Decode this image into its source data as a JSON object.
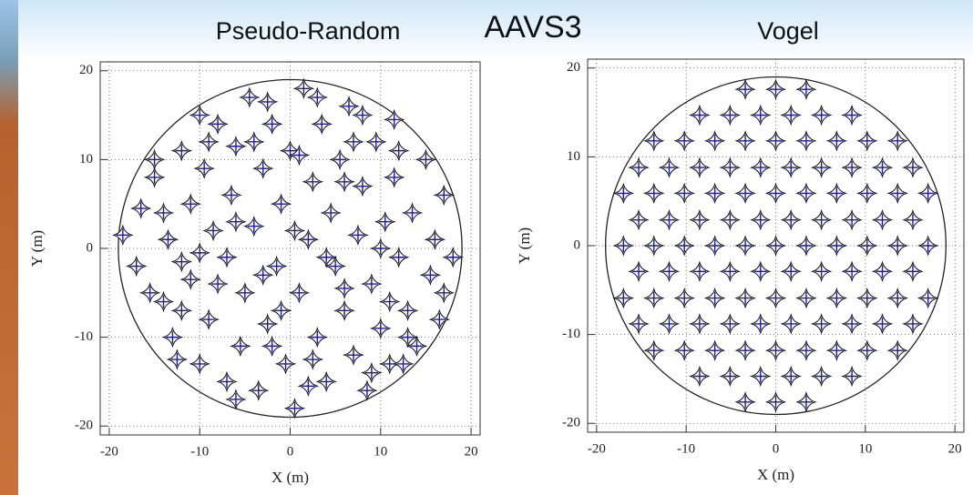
{
  "slide_title": "AAVS3",
  "chart_data": [
    {
      "type": "scatter",
      "title": "Pseudo-Random",
      "xlabel": "X (m)",
      "ylabel": "Y (m)",
      "xlim": [
        -21,
        21
      ],
      "ylim": [
        -21,
        21
      ],
      "xticks": [
        -20,
        -10,
        0,
        10,
        20
      ],
      "yticks": [
        -20,
        -10,
        0,
        10,
        20
      ],
      "grid": true,
      "boundary_radius": 19,
      "color": "#1a1aa6",
      "x": [
        -18.5,
        -17,
        -16.5,
        -15,
        -14,
        -13.5,
        -13,
        -12,
        -11,
        -11,
        -10,
        -9.5,
        -9,
        -8.5,
        -8,
        -7,
        -7,
        -6.5,
        -6,
        -5.5,
        -5,
        -4.5,
        -4,
        -3.5,
        -3,
        -2.5,
        -2,
        -1.5,
        -1,
        -0.5,
        0,
        0.5,
        1,
        1.5,
        2,
        2.5,
        3,
        3.5,
        4,
        4.5,
        5,
        5.5,
        6,
        6.5,
        7,
        7.5,
        8,
        8.5,
        9,
        9.5,
        10,
        10.5,
        11,
        11.5,
        12,
        11.5,
        13,
        13.5,
        14,
        15,
        15.5,
        16,
        16.5,
        17,
        18,
        -15.5,
        -12.5,
        -15,
        -10,
        -12,
        -6,
        -2.5,
        3,
        8,
        12,
        17,
        12.5,
        9,
        2,
        -2,
        -8,
        -4,
        0.5,
        6,
        -10,
        -14,
        4,
        10,
        -6,
        1,
        -3,
        7,
        -9,
        11,
        -1,
        6,
        -12,
        13,
        2.5
      ],
      "values": [
        1.5,
        -2,
        4.5,
        8,
        -6,
        1,
        -10,
        11,
        -3.5,
        5,
        -13,
        9,
        -8,
        2,
        14,
        -15,
        -1,
        6,
        11.5,
        -11,
        -5,
        17,
        2.5,
        -16,
        9,
        -8.5,
        14,
        -2,
        5,
        -13,
        11,
        -18,
        -5,
        18,
        1,
        7.5,
        -10,
        14,
        -15,
        4,
        -2,
        10,
        -7,
        16,
        -12,
        1.5,
        7,
        -16,
        -4,
        12,
        -9,
        3,
        -13,
        8,
        -1,
        14.5,
        -7,
        4,
        -11,
        10,
        -3,
        1,
        -8,
        6,
        -1,
        -5,
        -12.5,
        10,
        15,
        -7,
        -17,
        16.5,
        17,
        15,
        11,
        -5,
        -13,
        -14,
        -15.5,
        -11,
        -4,
        12,
        2,
        -4.5,
        -0.5,
        4,
        -1,
        0,
        3,
        10.5,
        -3,
        12,
        12,
        -6,
        -7,
        7.5,
        -1.5,
        -10,
        -12.5
      ]
    },
    {
      "type": "scatter",
      "title": "Vogel",
      "xlabel": "X (m)",
      "ylabel": "Y (m)",
      "xlim": [
        -21,
        21
      ],
      "ylim": [
        -21,
        21
      ],
      "xticks": [
        -20,
        -10,
        0,
        10,
        20
      ],
      "yticks": [
        -20,
        -10,
        0,
        10,
        20
      ],
      "grid": true,
      "boundary_radius": 19,
      "color": "#1a1aa6",
      "x": [
        -17,
        -13.6,
        -10.2,
        -6.8,
        -3.4,
        0,
        3.4,
        6.8,
        10.2,
        13.6,
        17,
        -15.3,
        -11.9,
        -8.5,
        -5.1,
        -1.7,
        1.7,
        5.1,
        8.5,
        11.9,
        15.3,
        -15.3,
        -11.9,
        -8.5,
        -5.1,
        -1.7,
        1.7,
        5.1,
        8.5,
        11.9,
        15.3,
        -17,
        -13.6,
        -10.2,
        -6.8,
        -3.4,
        0,
        3.4,
        6.8,
        10.2,
        13.6,
        17,
        -17,
        -13.6,
        -10.2,
        -6.8,
        -3.4,
        0,
        3.4,
        6.8,
        10.2,
        13.6,
        17,
        -15.3,
        -11.9,
        -8.5,
        -5.1,
        -1.7,
        1.7,
        5.1,
        8.5,
        11.9,
        15.3,
        -15.3,
        -11.9,
        -8.5,
        -5.1,
        -1.7,
        1.7,
        5.1,
        8.5,
        11.9,
        15.3,
        -13.6,
        -10.2,
        -6.8,
        -3.4,
        0,
        3.4,
        6.8,
        10.2,
        13.6,
        -13.6,
        -10.2,
        -6.8,
        -3.4,
        0,
        3.4,
        6.8,
        10.2,
        13.6,
        -8.5,
        -5.1,
        -1.7,
        1.7,
        5.1,
        8.5,
        -8.5,
        -5.1,
        -1.7,
        1.7,
        5.1,
        8.5,
        -3.4,
        0,
        3.4,
        -3.4,
        0,
        3.4
      ],
      "values": [
        0,
        0,
        0,
        0,
        0,
        0,
        0,
        0,
        0,
        0,
        0,
        2.9,
        2.9,
        2.9,
        2.9,
        2.9,
        2.9,
        2.9,
        2.9,
        2.9,
        2.9,
        -2.9,
        -2.9,
        -2.9,
        -2.9,
        -2.9,
        -2.9,
        -2.9,
        -2.9,
        -2.9,
        -2.9,
        5.9,
        5.9,
        5.9,
        5.9,
        5.9,
        5.9,
        5.9,
        5.9,
        5.9,
        5.9,
        5.9,
        -5.9,
        -5.9,
        -5.9,
        -5.9,
        -5.9,
        -5.9,
        -5.9,
        -5.9,
        -5.9,
        -5.9,
        -5.9,
        8.8,
        8.8,
        8.8,
        8.8,
        8.8,
        8.8,
        8.8,
        8.8,
        8.8,
        8.8,
        -8.8,
        -8.8,
        -8.8,
        -8.8,
        -8.8,
        -8.8,
        -8.8,
        -8.8,
        -8.8,
        -8.8,
        11.8,
        11.8,
        11.8,
        11.8,
        11.8,
        11.8,
        11.8,
        11.8,
        11.8,
        -11.8,
        -11.8,
        -11.8,
        -11.8,
        -11.8,
        -11.8,
        -11.8,
        -11.8,
        -11.8,
        14.7,
        14.7,
        14.7,
        14.7,
        14.7,
        14.7,
        -14.7,
        -14.7,
        -14.7,
        -14.7,
        -14.7,
        -14.7,
        17.6,
        17.6,
        17.6,
        -17.6,
        -17.6,
        -17.6
      ]
    }
  ]
}
